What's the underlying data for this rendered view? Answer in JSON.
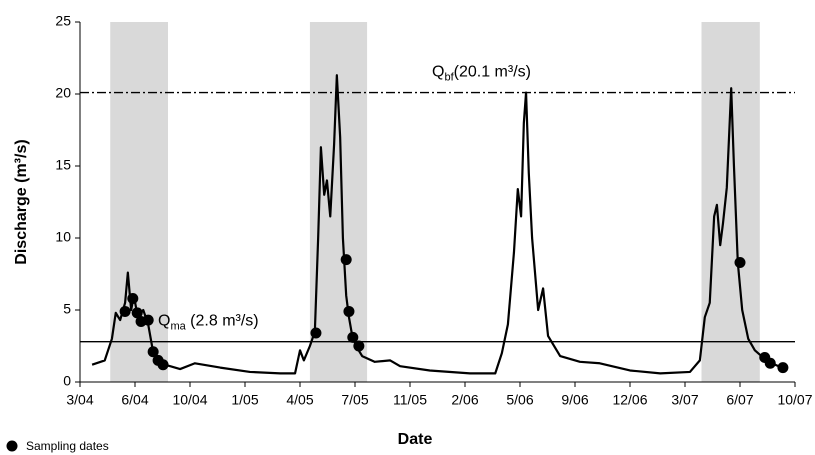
{
  "chart_data": {
    "type": "line",
    "x_label": "Date",
    "y_label": "Discharge (m³/s)",
    "xlim": [
      0,
      13
    ],
    "xticks": [
      {
        "value": 0,
        "label": "3/04"
      },
      {
        "value": 1,
        "label": "6/04"
      },
      {
        "value": 2,
        "label": "10/04"
      },
      {
        "value": 3,
        "label": "1/05"
      },
      {
        "value": 4,
        "label": "4/05"
      },
      {
        "value": 5,
        "label": "7/05"
      },
      {
        "value": 6,
        "label": "11/05"
      },
      {
        "value": 7,
        "label": "2/06"
      },
      {
        "value": 8,
        "label": "5/06"
      },
      {
        "value": 9,
        "label": "9/06"
      },
      {
        "value": 10,
        "label": "12/06"
      },
      {
        "value": 11,
        "label": "3/07"
      },
      {
        "value": 12,
        "label": "6/07"
      },
      {
        "value": 13,
        "label": "10/07"
      }
    ],
    "ylim": [
      0,
      25
    ],
    "yticks": [
      0,
      5,
      10,
      15,
      20,
      25
    ],
    "shaded_periods": [
      [
        0.55,
        1.6
      ],
      [
        4.18,
        5.22
      ],
      [
        11.3,
        12.36
      ]
    ],
    "shade_color": "#d9d9d9",
    "reference_lines": [
      {
        "value": 20.1,
        "label_main": "Q",
        "label_sub": "bf",
        "label_rest": "(20.1 m³/s)",
        "style": "dashdot"
      },
      {
        "value": 2.8,
        "label_main": "Q",
        "label_sub": "ma",
        "label_rest": " (2.8 m³/s)",
        "style": "solid"
      }
    ],
    "legend": "bottom-left",
    "series": [
      {
        "type": "line",
        "color": "#000000",
        "x": [
          0.22,
          0.45,
          0.58,
          0.65,
          0.73,
          0.82,
          0.87,
          0.93,
          0.98,
          1.05,
          1.15,
          1.24,
          1.31,
          1.38,
          1.45,
          1.64,
          1.82,
          2.09,
          2.55,
          3.09,
          3.64,
          3.91,
          4.0,
          4.07,
          4.18,
          4.27,
          4.33,
          4.38,
          4.44,
          4.49,
          4.55,
          4.62,
          4.67,
          4.73,
          4.78,
          4.84,
          4.89,
          4.95,
          5.02,
          5.13,
          5.36,
          5.64,
          5.82,
          6.36,
          7.09,
          7.55,
          7.67,
          7.78,
          7.89,
          7.96,
          8.02,
          8.07,
          8.11,
          8.16,
          8.22,
          8.33,
          8.42,
          8.51,
          8.73,
          9.09,
          9.45,
          10.0,
          10.55,
          11.09,
          11.27,
          11.36,
          11.45,
          11.53,
          11.58,
          11.64,
          11.69,
          11.76,
          11.84,
          11.89,
          11.96,
          12.04,
          12.15,
          12.27,
          12.45,
          12.64,
          12.82
        ],
        "values": [
          1.2,
          1.5,
          3,
          4.8,
          4.3,
          5.5,
          7.6,
          5,
          6,
          4.5,
          5,
          4,
          2.5,
          1.7,
          1.3,
          1.1,
          0.9,
          1.3,
          1.0,
          0.7,
          0.6,
          0.6,
          2.2,
          1.5,
          2.5,
          3.5,
          10,
          16.3,
          13,
          14,
          11.5,
          16.5,
          21.3,
          17,
          10,
          6,
          4.5,
          3.2,
          2.5,
          1.8,
          1.4,
          1.5,
          1.1,
          0.8,
          0.6,
          0.6,
          2,
          4,
          9,
          13.4,
          11.5,
          18,
          20.1,
          14.5,
          10,
          5,
          6.5,
          3.2,
          1.8,
          1.4,
          1.3,
          0.8,
          0.6,
          0.7,
          1.5,
          4.5,
          5.5,
          11.5,
          12.3,
          9.5,
          11,
          13.5,
          20.4,
          15,
          8.3,
          5,
          3,
          2.2,
          1.6,
          1.2,
          0.9
        ]
      },
      {
        "type": "scatter",
        "name": "Sampling dates",
        "color": "#000000",
        "x": [
          0.82,
          0.96,
          1.04,
          1.11,
          1.24,
          1.33,
          1.42,
          1.51,
          4.29,
          4.84,
          4.89,
          4.96,
          5.07,
          12.0,
          12.45,
          12.55,
          12.78
        ],
        "values": [
          4.9,
          5.8,
          4.8,
          4.2,
          4.3,
          2.1,
          1.5,
          1.2,
          3.4,
          8.5,
          4.9,
          3.1,
          2.5,
          8.3,
          1.7,
          1.3,
          1.0
        ]
      }
    ]
  }
}
